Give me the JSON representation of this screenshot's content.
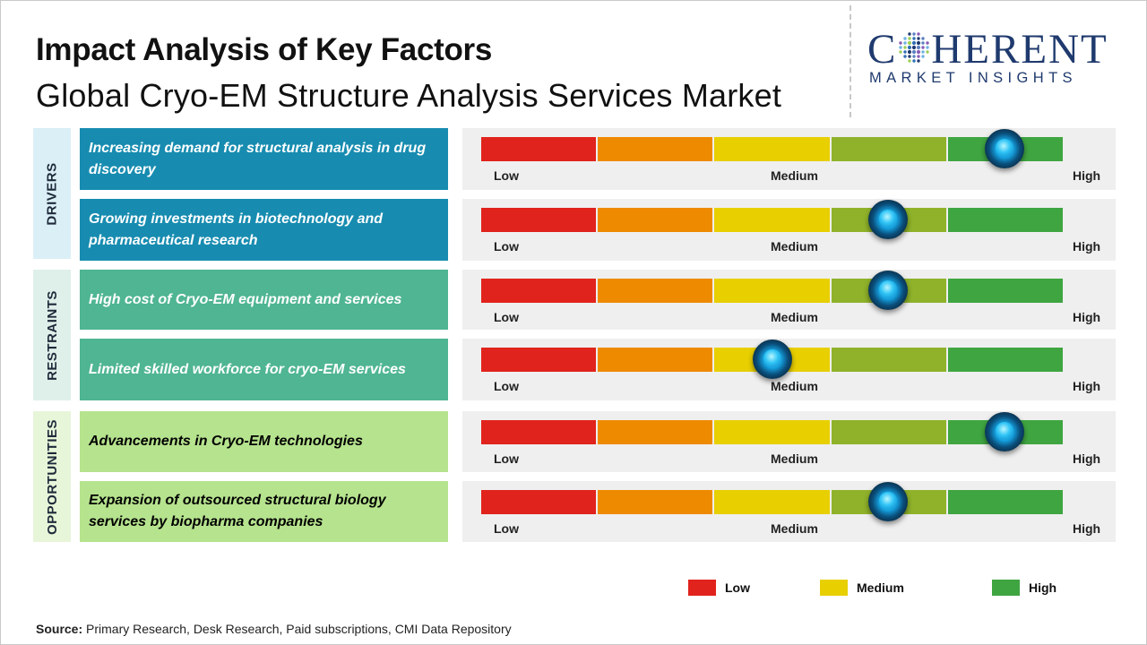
{
  "header": {
    "title": "Impact Analysis of Key Factors",
    "subtitle": "Global Cryo-EM Structure Analysis Services Market"
  },
  "logo": {
    "top_left": "C",
    "top_right": "HERENT",
    "bottom": "MARKET INSIGHTS"
  },
  "colors": {
    "scale": [
      "#e0231c",
      "#ee8a00",
      "#e8cf00",
      "#8fb22a",
      "#3fa541"
    ],
    "drivers_category_bg": "#dbeff6",
    "drivers_factor_bg": "#178cb0",
    "restraints_category_bg": "#dff0ea",
    "restraints_factor_bg": "#4fb592",
    "opportunities_category_bg": "#e7f5d9",
    "opportunities_factor_bg": "#b6e38e",
    "panel_bg": "#efefef",
    "knob": "#15a6e6"
  },
  "chart_data": {
    "type": "gauge",
    "scale_labels": {
      "low": "Low",
      "medium": "Medium",
      "high": "High"
    },
    "categories": [
      {
        "name": "DRIVERS",
        "factors": [
          {
            "label": "Increasing demand for structural analysis in drug discovery",
            "impact": 0.9
          },
          {
            "label": "Growing investments in biotechnology and pharmaceutical research",
            "impact": 0.7
          }
        ]
      },
      {
        "name": "RESTRAINTS",
        "factors": [
          {
            "label": "High cost of Cryo-EM equipment and services",
            "impact": 0.7
          },
          {
            "label": "Limited skilled workforce for cryo-EM services",
            "impact": 0.5
          }
        ]
      },
      {
        "name": "OPPORTUNITIES",
        "factors": [
          {
            "label": "Advancements in Cryo-EM technologies",
            "impact": 0.9
          },
          {
            "label": "Expansion of outsourced structural biology services by biopharma companies",
            "impact": 0.7
          }
        ]
      }
    ],
    "legend": [
      {
        "label": "Low",
        "color": "#e0231c"
      },
      {
        "label": "Medium",
        "color": "#e8cf00"
      },
      {
        "label": "High",
        "color": "#3fa541"
      }
    ]
  },
  "footer": {
    "source_label": "Source:",
    "source_text": "Primary Research, Desk Research, Paid subscriptions, CMI Data Repository"
  }
}
